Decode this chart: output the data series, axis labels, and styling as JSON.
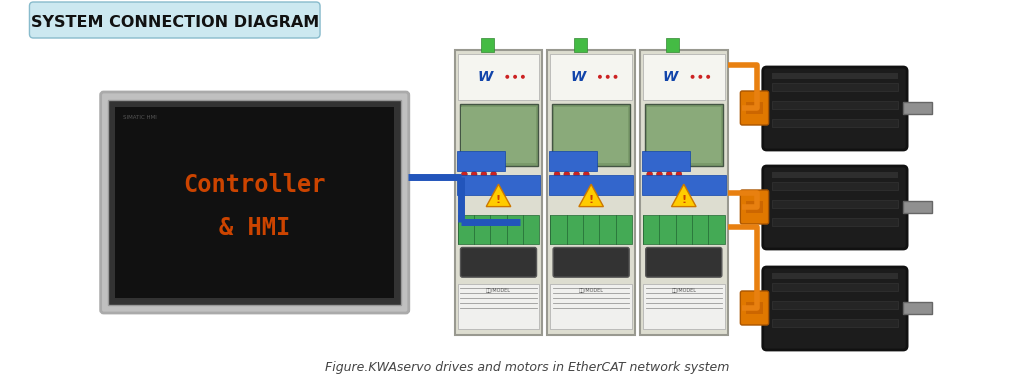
{
  "title": "SYSTEM CONNECTION DIAGRAM",
  "title_bg": "#cce8f0",
  "title_color": "#111111",
  "caption": "Figure.KWAservo drives and motors in EtherCAT network system",
  "caption_color": "#444444",
  "hmi_label1": "Controller",
  "hmi_label2": "& HMI",
  "hmi_label_color": "#cc4400",
  "connector_color": "#2255bb",
  "orange_line_color": "#e88010",
  "bg_color": "#ffffff",
  "monitor_screen_color": "#111111",
  "monitor_bezel_color": "#c0c0c0",
  "monitor_inner_bezel": "#e8e8e8",
  "drive_body_color": "#ddddd0",
  "drive_border_color": "#999990",
  "motor_body_color": "#1a1a1a",
  "motor_connector_color": "#e07800",
  "motor_shaft_color": "#909090"
}
